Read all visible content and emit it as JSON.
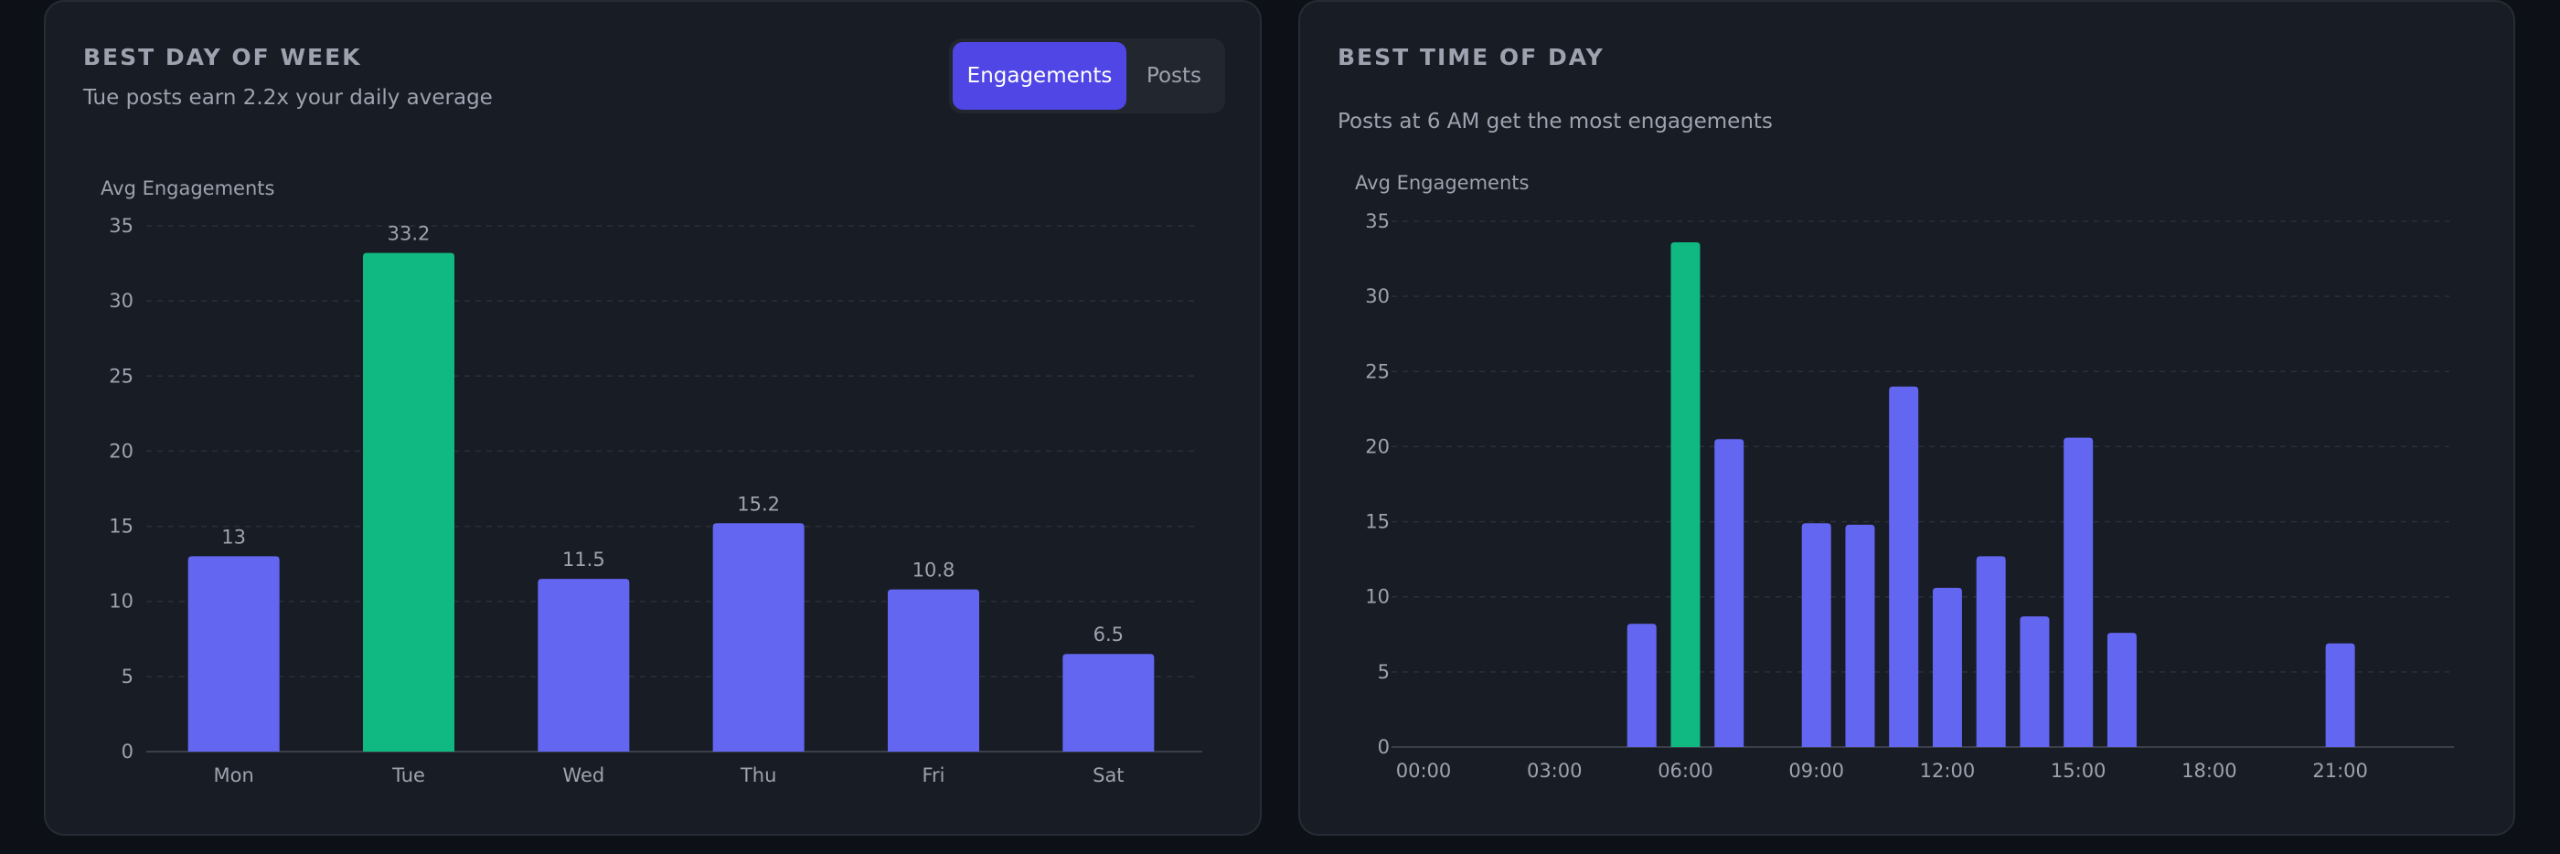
{
  "colors": {
    "bar": "#6366f1",
    "highlight": "#10b981",
    "grid": "#2a2f3a"
  },
  "left_card": {
    "title": "BEST DAY OF WEEK",
    "subtitle": "Tue posts earn 2.2x your daily average",
    "toggle": {
      "engagements": "Engagements",
      "posts": "Posts",
      "active": "Engagements"
    }
  },
  "right_card": {
    "title": "BEST TIME OF DAY",
    "subtitle": "Posts at 6 AM get the most engagements"
  },
  "chart_data": [
    {
      "type": "bar",
      "categories": [
        "Mon",
        "Tue",
        "Wed",
        "Thu",
        "Fri",
        "Sat"
      ],
      "values": [
        13,
        33.2,
        11.5,
        15.2,
        10.8,
        6.5
      ],
      "value_labels": [
        "13",
        "33.2",
        "11.5",
        "15.2",
        "10.8",
        "6.5"
      ],
      "highlight_index": 1,
      "ylabel": "Avg Engagements",
      "ylim": [
        0,
        35
      ],
      "yticks": [
        0,
        5,
        10,
        15,
        20,
        25,
        30,
        35
      ],
      "grid": true
    },
    {
      "type": "bar",
      "x": [
        0,
        1,
        2,
        3,
        4,
        5,
        6,
        7,
        8,
        9,
        10,
        11,
        12,
        13,
        14,
        15,
        16,
        17,
        18,
        19,
        20,
        21,
        22,
        23
      ],
      "values": [
        0,
        0,
        0,
        0,
        0,
        8.2,
        33.6,
        20.5,
        0,
        14.9,
        14.8,
        24,
        10.6,
        12.7,
        8.7,
        20.6,
        7.6,
        0,
        0,
        0,
        0,
        6.9,
        0,
        0
      ],
      "highlight_index": 6,
      "x_tick_labels": [
        "00:00",
        "03:00",
        "06:00",
        "09:00",
        "12:00",
        "15:00",
        "18:00",
        "21:00"
      ],
      "x_tick_hours": [
        0,
        3,
        6,
        9,
        12,
        15,
        18,
        21
      ],
      "ylabel": "Avg Engagements",
      "ylim": [
        0,
        35
      ],
      "yticks": [
        0,
        5,
        10,
        15,
        20,
        25,
        30,
        35
      ],
      "grid": true
    }
  ]
}
